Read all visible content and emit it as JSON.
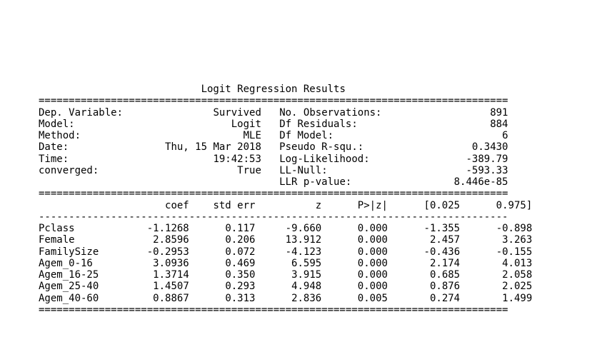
{
  "title": "Logit Regression Results",
  "header_left": [
    {
      "label": "Dep. Variable:",
      "value": "Survived"
    },
    {
      "label": "Model:",
      "value": "Logit"
    },
    {
      "label": "Method:",
      "value": "MLE"
    },
    {
      "label": "Date:",
      "value": "Thu, 15 Mar 2018"
    },
    {
      "label": "Time:",
      "value": "19:42:53"
    },
    {
      "label": "converged:",
      "value": "True"
    }
  ],
  "header_right": [
    {
      "label": "No. Observations:",
      "value": "891"
    },
    {
      "label": "Df Residuals:",
      "value": "884"
    },
    {
      "label": "Df Model:",
      "value": "6"
    },
    {
      "label": "Pseudo R-squ.:",
      "value": "0.3430"
    },
    {
      "label": "Log-Likelihood:",
      "value": "-389.79"
    },
    {
      "label": "LL-Null:",
      "value": "-593.33"
    },
    {
      "label": "LLR p-value:",
      "value": "8.446e-85"
    }
  ],
  "coef_columns": [
    "coef",
    "std err",
    "z",
    "P>|z|",
    "[0.025",
    "0.975]"
  ],
  "coef_rows": [
    {
      "name": "Pclass",
      "values": [
        "-1.1268",
        "0.117",
        "-9.660",
        "0.000",
        "-1.355",
        "-0.898"
      ]
    },
    {
      "name": "Female",
      "values": [
        "2.8596",
        "0.206",
        "13.912",
        "0.000",
        "2.457",
        "3.263"
      ]
    },
    {
      "name": "FamilySize",
      "values": [
        "-0.2953",
        "0.072",
        "-4.123",
        "0.000",
        "-0.436",
        "-0.155"
      ]
    },
    {
      "name": "Agem_0-16",
      "values": [
        "3.0936",
        "0.469",
        "6.595",
        "0.000",
        "2.174",
        "4.013"
      ]
    },
    {
      "name": "Agem_16-25",
      "values": [
        "1.3714",
        "0.350",
        "3.915",
        "0.000",
        "0.685",
        "2.058"
      ]
    },
    {
      "name": "Agem_25-40",
      "values": [
        "1.4507",
        "0.293",
        "4.948",
        "0.000",
        "0.876",
        "2.025"
      ]
    },
    {
      "name": "Agem_40-60",
      "values": [
        "0.8867",
        "0.313",
        "2.836",
        "0.005",
        "0.274",
        "1.499"
      ]
    }
  ]
}
